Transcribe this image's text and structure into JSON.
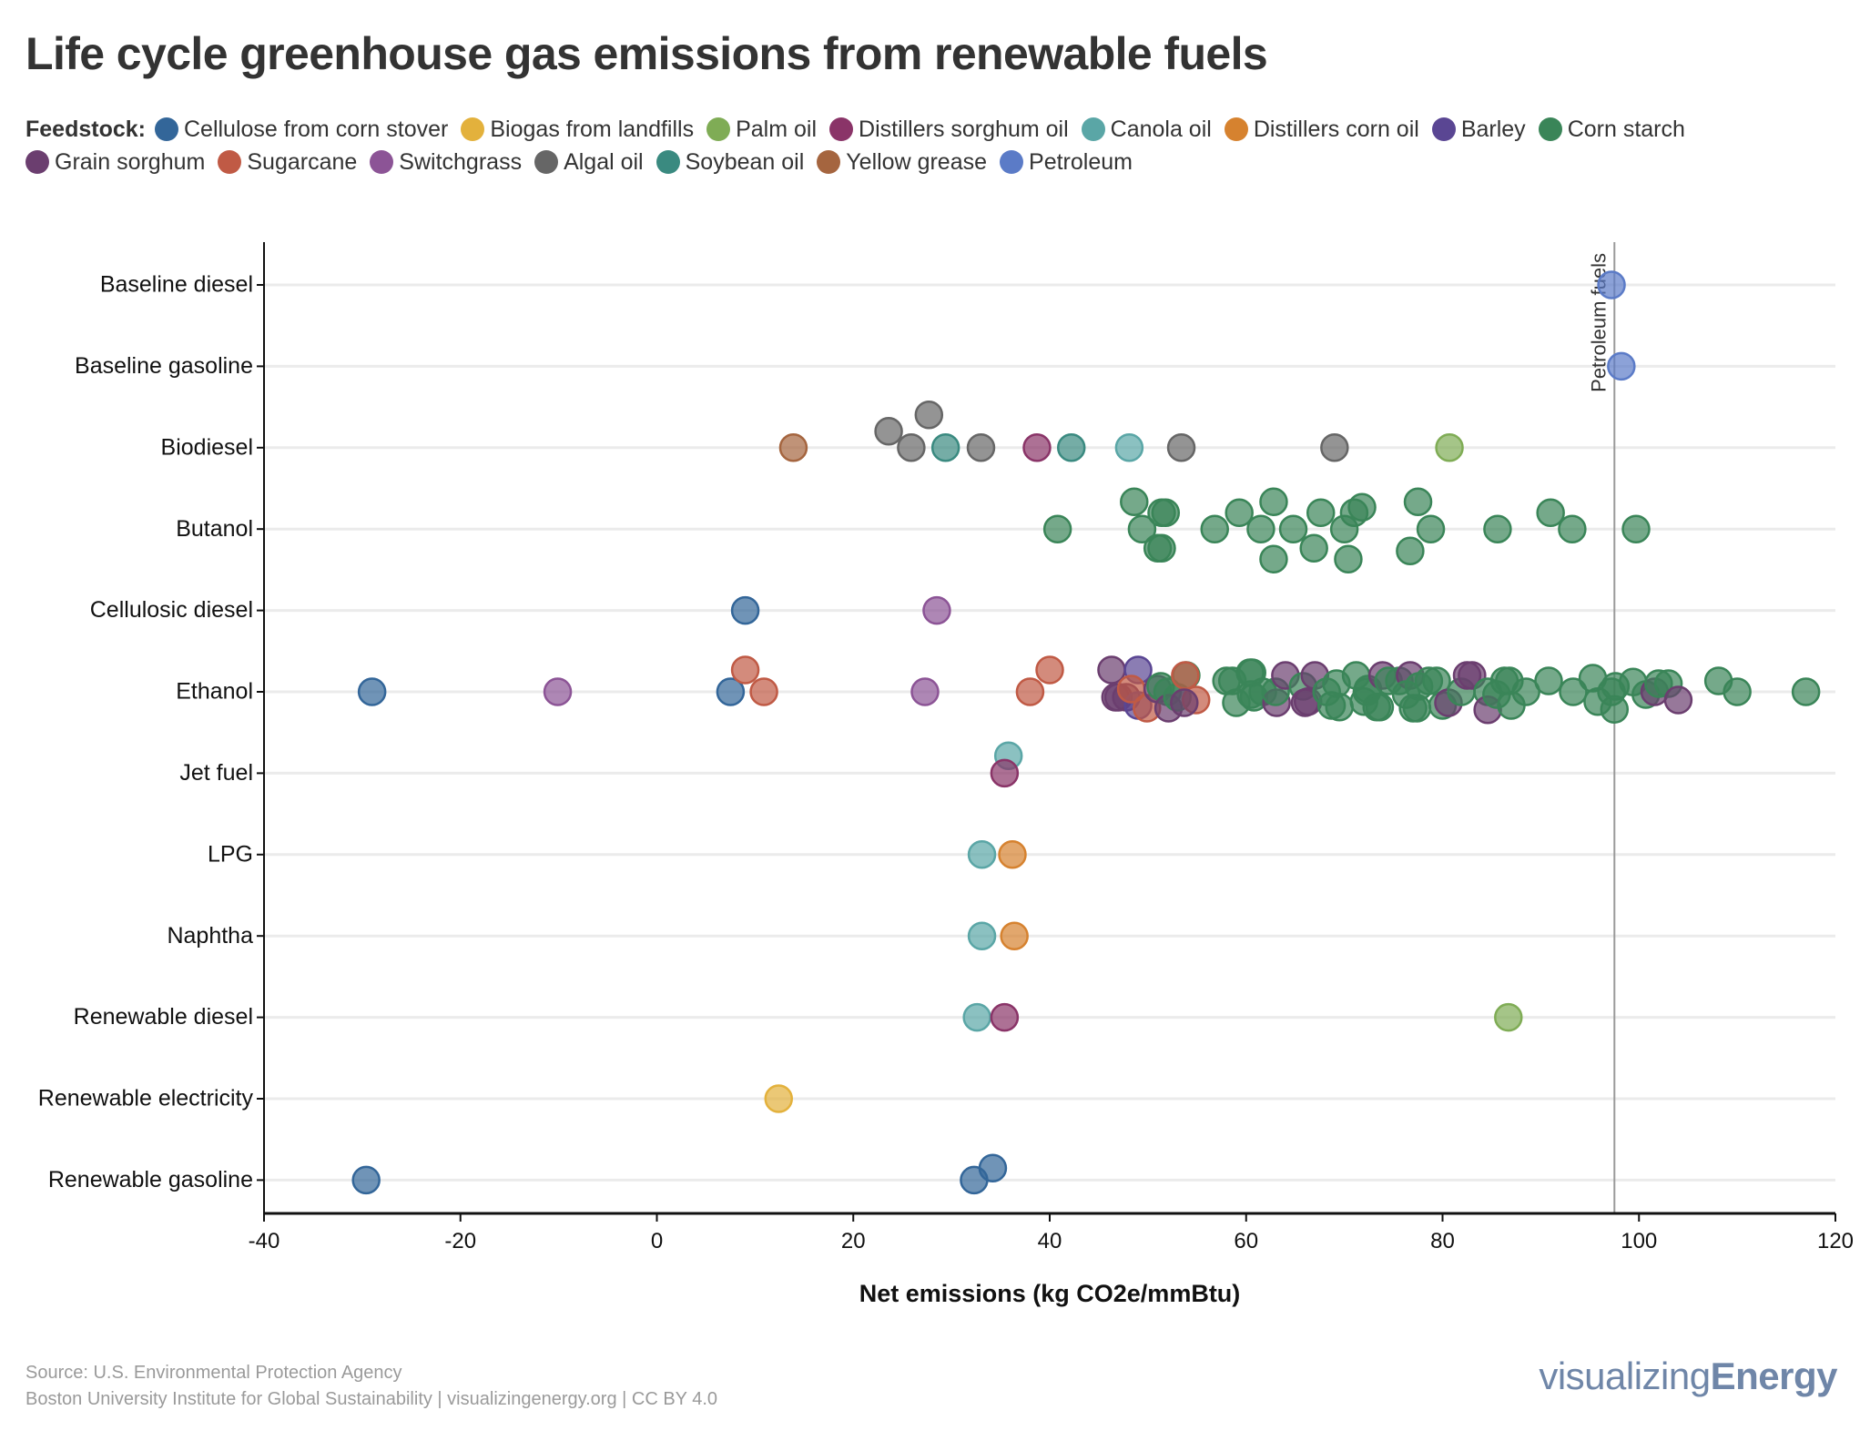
{
  "header": {
    "title": "Life cycle greenhouse gas emissions from renewable fuels"
  },
  "legend": {
    "label": "Feedstock:",
    "rows": [
      [
        {
          "name": "Cellulose from corn stover",
          "color": "#336699"
        },
        {
          "name": "Biogas from landfills",
          "color": "#e3b13c"
        },
        {
          "name": "Palm oil",
          "color": "#7fac55"
        },
        {
          "name": "Distillers sorghum oil",
          "color": "#8a3468"
        },
        {
          "name": "Canola oil",
          "color": "#5aa6a6"
        },
        {
          "name": "Distillers corn oil",
          "color": "#d6822f"
        },
        {
          "name": "Barley",
          "color": "#5a4693"
        },
        {
          "name": "Corn starch",
          "color": "#3a8558"
        }
      ],
      [
        {
          "name": "Grain sorghum",
          "color": "#6b3e6f"
        },
        {
          "name": "Sugarcane",
          "color": "#c05a45"
        },
        {
          "name": "Switchgrass",
          "color": "#8c5496"
        },
        {
          "name": "Algal oil",
          "color": "#666666"
        },
        {
          "name": "Soybean oil",
          "color": "#3a8a80"
        },
        {
          "name": "Yellow grease",
          "color": "#a5653f"
        },
        {
          "name": "Petroleum",
          "color": "#5b7bc7"
        }
      ]
    ]
  },
  "chart_data": {
    "type": "scatter",
    "subtype": "beeswarm",
    "title": "Life cycle greenhouse gas emissions from renewable fuels",
    "xlabel": "Net emissions (kg CO2e/mmBtu)",
    "ylabel": "",
    "xlim": [
      -40,
      120
    ],
    "xticks": [
      -40,
      -20,
      0,
      20,
      40,
      60,
      80,
      100,
      120
    ],
    "xtick_labels": [
      "-40",
      "-20",
      "0",
      "20",
      "40",
      "60",
      "80",
      "100",
      "120"
    ],
    "categories": [
      "Baseline diesel",
      "Baseline gasoline",
      "Biodiesel",
      "Butanol",
      "Cellulosic diesel",
      "Ethanol",
      "Jet fuel",
      "LPG",
      "Naphtha",
      "Renewable diesel",
      "Renewable electricity",
      "Renewable gasoline"
    ],
    "grid": "horizontal",
    "legend_position": "top",
    "reference_line": {
      "x": 97.5,
      "label": "Petroleum fuels"
    },
    "points": [
      {
        "fuel": "Baseline diesel",
        "feedstock": "Petroleum",
        "x": 97.2,
        "o": 0
      },
      {
        "fuel": "Baseline gasoline",
        "feedstock": "Petroleum",
        "x": 98.2,
        "o": 0
      },
      {
        "fuel": "Biodiesel",
        "feedstock": "Yellow grease",
        "x": 13.9,
        "o": 0
      },
      {
        "fuel": "Biodiesel",
        "feedstock": "Algal oil",
        "x": 23.6,
        "o": -0.3
      },
      {
        "fuel": "Biodiesel",
        "feedstock": "Algal oil",
        "x": 25.9,
        "o": 0
      },
      {
        "fuel": "Biodiesel",
        "feedstock": "Algal oil",
        "x": 27.7,
        "o": -0.6
      },
      {
        "fuel": "Biodiesel",
        "feedstock": "Soybean oil",
        "x": 29.4,
        "o": 0
      },
      {
        "fuel": "Biodiesel",
        "feedstock": "Algal oil",
        "x": 33.0,
        "o": 0
      },
      {
        "fuel": "Biodiesel",
        "feedstock": "Distillers sorghum oil",
        "x": 38.7,
        "o": 0
      },
      {
        "fuel": "Biodiesel",
        "feedstock": "Soybean oil",
        "x": 42.2,
        "o": 0
      },
      {
        "fuel": "Biodiesel",
        "feedstock": "Canola oil",
        "x": 48.1,
        "o": 0
      },
      {
        "fuel": "Biodiesel",
        "feedstock": "Algal oil",
        "x": 53.4,
        "o": 0
      },
      {
        "fuel": "Biodiesel",
        "feedstock": "Algal oil",
        "x": 69.0,
        "o": 0
      },
      {
        "fuel": "Biodiesel",
        "feedstock": "Palm oil",
        "x": 80.7,
        "o": 0
      },
      {
        "fuel": "Butanol",
        "feedstock": "Corn starch",
        "x": 40.8,
        "o": 0
      },
      {
        "fuel": "Butanol",
        "feedstock": "Corn starch",
        "x": 48.6,
        "o": -0.5
      },
      {
        "fuel": "Butanol",
        "feedstock": "Corn starch",
        "x": 49.4,
        "o": 0
      },
      {
        "fuel": "Butanol",
        "feedstock": "Corn starch",
        "x": 51.4,
        "o": -0.3
      },
      {
        "fuel": "Butanol",
        "feedstock": "Corn starch",
        "x": 51.8,
        "o": -0.3
      },
      {
        "fuel": "Butanol",
        "feedstock": "Corn starch",
        "x": 51.0,
        "o": 0.35
      },
      {
        "fuel": "Butanol",
        "feedstock": "Corn starch",
        "x": 51.4,
        "o": 0.35
      },
      {
        "fuel": "Butanol",
        "feedstock": "Corn starch",
        "x": 56.8,
        "o": 0
      },
      {
        "fuel": "Butanol",
        "feedstock": "Corn starch",
        "x": 59.3,
        "o": -0.3
      },
      {
        "fuel": "Butanol",
        "feedstock": "Corn starch",
        "x": 61.5,
        "o": 0
      },
      {
        "fuel": "Butanol",
        "feedstock": "Corn starch",
        "x": 62.8,
        "o": -0.5
      },
      {
        "fuel": "Butanol",
        "feedstock": "Corn starch",
        "x": 62.8,
        "o": 0.55
      },
      {
        "fuel": "Butanol",
        "feedstock": "Corn starch",
        "x": 64.8,
        "o": 0
      },
      {
        "fuel": "Butanol",
        "feedstock": "Corn starch",
        "x": 66.9,
        "o": 0.35
      },
      {
        "fuel": "Butanol",
        "feedstock": "Corn starch",
        "x": 67.6,
        "o": -0.3
      },
      {
        "fuel": "Butanol",
        "feedstock": "Corn starch",
        "x": 70.0,
        "o": 0
      },
      {
        "fuel": "Butanol",
        "feedstock": "Corn starch",
        "x": 70.4,
        "o": 0.55
      },
      {
        "fuel": "Butanol",
        "feedstock": "Corn starch",
        "x": 71.0,
        "o": -0.3
      },
      {
        "fuel": "Butanol",
        "feedstock": "Corn starch",
        "x": 71.8,
        "o": -0.4
      },
      {
        "fuel": "Butanol",
        "feedstock": "Corn starch",
        "x": 76.7,
        "o": 0.4
      },
      {
        "fuel": "Butanol",
        "feedstock": "Corn starch",
        "x": 77.5,
        "o": -0.5
      },
      {
        "fuel": "Butanol",
        "feedstock": "Corn starch",
        "x": 78.8,
        "o": 0
      },
      {
        "fuel": "Butanol",
        "feedstock": "Corn starch",
        "x": 85.6,
        "o": 0
      },
      {
        "fuel": "Butanol",
        "feedstock": "Corn starch",
        "x": 91.0,
        "o": -0.3
      },
      {
        "fuel": "Butanol",
        "feedstock": "Corn starch",
        "x": 93.2,
        "o": 0
      },
      {
        "fuel": "Butanol",
        "feedstock": "Corn starch",
        "x": 99.7,
        "o": 0
      },
      {
        "fuel": "Cellulosic diesel",
        "feedstock": "Cellulose from corn stover",
        "x": 9.0,
        "o": 0
      },
      {
        "fuel": "Cellulosic diesel",
        "feedstock": "Switchgrass",
        "x": 28.5,
        "o": 0
      },
      {
        "fuel": "Ethanol",
        "feedstock": "Cellulose from corn stover",
        "x": -29.0,
        "o": 0
      },
      {
        "fuel": "Ethanol",
        "feedstock": "Switchgrass",
        "x": -10.1,
        "o": 0
      },
      {
        "fuel": "Ethanol",
        "feedstock": "Cellulose from corn stover",
        "x": 7.5,
        "o": 0
      },
      {
        "fuel": "Ethanol",
        "feedstock": "Sugarcane",
        "x": 9.0,
        "o": -0.4
      },
      {
        "fuel": "Ethanol",
        "feedstock": "Sugarcane",
        "x": 10.9,
        "o": 0
      },
      {
        "fuel": "Ethanol",
        "feedstock": "Switchgrass",
        "x": 27.3,
        "o": 0
      },
      {
        "fuel": "Ethanol",
        "feedstock": "Sugarcane",
        "x": 38.0,
        "o": 0
      },
      {
        "fuel": "Ethanol",
        "feedstock": "Sugarcane",
        "x": 40.0,
        "o": -0.4
      },
      {
        "fuel": "Ethanol",
        "feedstock": "Grain sorghum",
        "x": 46.3,
        "o": -0.4
      },
      {
        "fuel": "Ethanol",
        "feedstock": "Grain sorghum",
        "x": 46.7,
        "o": 0.1
      },
      {
        "fuel": "Ethanol",
        "feedstock": "Grain sorghum",
        "x": 47.0,
        "o": 0.1
      },
      {
        "fuel": "Ethanol",
        "feedstock": "Grain sorghum",
        "x": 47.8,
        "o": 0.1
      },
      {
        "fuel": "Ethanol",
        "feedstock": "Barley",
        "x": 49.0,
        "o": -0.4
      },
      {
        "fuel": "Ethanol",
        "feedstock": "Barley",
        "x": 49.0,
        "o": 0.25
      },
      {
        "fuel": "Ethanol",
        "feedstock": "Sugarcane",
        "x": 48.3,
        "o": -0.05
      },
      {
        "fuel": "Ethanol",
        "feedstock": "Sugarcane",
        "x": 49.9,
        "o": 0.3
      },
      {
        "fuel": "Ethanol",
        "feedstock": "Grain sorghum",
        "x": 51.0,
        "o": -0.05
      },
      {
        "fuel": "Ethanol",
        "feedstock": "Corn starch",
        "x": 51.3,
        "o": -0.1
      },
      {
        "fuel": "Ethanol",
        "feedstock": "Corn starch",
        "x": 52.0,
        "o": 0.0
      },
      {
        "fuel": "Ethanol",
        "feedstock": "Grain sorghum",
        "x": 52.1,
        "o": 0.3
      },
      {
        "fuel": "Ethanol",
        "feedstock": "Corn starch",
        "x": 53.0,
        "o": 0.1
      },
      {
        "fuel": "Ethanol",
        "feedstock": "Corn starch",
        "x": 53.9,
        "o": -0.3
      },
      {
        "fuel": "Ethanol",
        "feedstock": "Sugarcane",
        "x": 53.8,
        "o": -0.3
      },
      {
        "fuel": "Ethanol",
        "feedstock": "Sugarcane",
        "x": 54.9,
        "o": 0.15
      },
      {
        "fuel": "Ethanol",
        "feedstock": "Grain sorghum",
        "x": 53.7,
        "o": 0.2
      },
      {
        "fuel": "Ethanol",
        "feedstock": "Corn starch",
        "x": 58.0,
        "o": -0.2
      },
      {
        "fuel": "Ethanol",
        "feedstock": "Corn starch",
        "x": 58.6,
        "o": -0.2
      },
      {
        "fuel": "Ethanol",
        "feedstock": "Corn starch",
        "x": 59.0,
        "o": 0.2
      },
      {
        "fuel": "Ethanol",
        "feedstock": "Corn starch",
        "x": 60.4,
        "o": -0.35
      },
      {
        "fuel": "Ethanol",
        "feedstock": "Corn starch",
        "x": 60.6,
        "o": -0.35
      },
      {
        "fuel": "Ethanol",
        "feedstock": "Corn starch",
        "x": 60.5,
        "o": 0.05
      },
      {
        "fuel": "Ethanol",
        "feedstock": "Corn starch",
        "x": 60.8,
        "o": 0.1
      },
      {
        "fuel": "Ethanol",
        "feedstock": "Corn starch",
        "x": 61.7,
        "o": 0.0
      },
      {
        "fuel": "Ethanol",
        "feedstock": "Grain sorghum",
        "x": 63.1,
        "o": 0.2
      },
      {
        "fuel": "Ethanol",
        "feedstock": "Corn starch",
        "x": 63.0,
        "o": 0.0
      },
      {
        "fuel": "Ethanol",
        "feedstock": "Grain sorghum",
        "x": 64.0,
        "o": -0.3
      },
      {
        "fuel": "Ethanol",
        "feedstock": "Corn starch",
        "x": 65.8,
        "o": -0.1
      },
      {
        "fuel": "Ethanol",
        "feedstock": "Grain sorghum",
        "x": 66.0,
        "o": 0.2
      },
      {
        "fuel": "Ethanol",
        "feedstock": "Grain sorghum",
        "x": 66.3,
        "o": 0.18
      },
      {
        "fuel": "Ethanol",
        "feedstock": "Grain sorghum",
        "x": 67.0,
        "o": -0.3
      },
      {
        "fuel": "Ethanol",
        "feedstock": "Corn starch",
        "x": 68.2,
        "o": 0.0
      },
      {
        "fuel": "Ethanol",
        "feedstock": "Corn starch",
        "x": 68.7,
        "o": 0.25
      },
      {
        "fuel": "Ethanol",
        "feedstock": "Corn starch",
        "x": 69.2,
        "o": -0.15
      },
      {
        "fuel": "Ethanol",
        "feedstock": "Corn starch",
        "x": 69.5,
        "o": 0.28
      },
      {
        "fuel": "Ethanol",
        "feedstock": "Corn starch",
        "x": 71.2,
        "o": -0.3
      },
      {
        "fuel": "Ethanol",
        "feedstock": "Corn starch",
        "x": 72.0,
        "o": 0.18
      },
      {
        "fuel": "Ethanol",
        "feedstock": "Corn starch",
        "x": 72.3,
        "o": 0.0
      },
      {
        "fuel": "Ethanol",
        "feedstock": "Corn starch",
        "x": 72.4,
        "o": -0.05
      },
      {
        "fuel": "Ethanol",
        "feedstock": "Corn starch",
        "x": 73.3,
        "o": 0.28
      },
      {
        "fuel": "Ethanol",
        "feedstock": "Corn starch",
        "x": 73.6,
        "o": 0.28
      },
      {
        "fuel": "Ethanol",
        "feedstock": "Grain sorghum",
        "x": 73.9,
        "o": -0.3
      },
      {
        "fuel": "Ethanol",
        "feedstock": "Corn starch",
        "x": 74.5,
        "o": -0.2
      },
      {
        "fuel": "Ethanol",
        "feedstock": "Corn starch",
        "x": 75.6,
        "o": -0.2
      },
      {
        "fuel": "Ethanol",
        "feedstock": "Grain sorghum",
        "x": 76.7,
        "o": -0.3
      },
      {
        "fuel": "Ethanol",
        "feedstock": "Corn starch",
        "x": 76.3,
        "o": 0.05
      },
      {
        "fuel": "Ethanol",
        "feedstock": "Corn starch",
        "x": 77.0,
        "o": 0.3
      },
      {
        "fuel": "Ethanol",
        "feedstock": "Corn starch",
        "x": 77.4,
        "o": 0.3
      },
      {
        "fuel": "Ethanol",
        "feedstock": "Corn starch",
        "x": 77.6,
        "o": -0.1
      },
      {
        "fuel": "Ethanol",
        "feedstock": "Corn starch",
        "x": 78.6,
        "o": -0.2
      },
      {
        "fuel": "Ethanol",
        "feedstock": "Corn starch",
        "x": 79.4,
        "o": -0.2
      },
      {
        "fuel": "Ethanol",
        "feedstock": "Corn starch",
        "x": 80.0,
        "o": 0.25
      },
      {
        "fuel": "Ethanol",
        "feedstock": "Grain sorghum",
        "x": 80.6,
        "o": 0.2
      },
      {
        "fuel": "Ethanol",
        "feedstock": "Corn starch",
        "x": 81.9,
        "o": 0.0
      },
      {
        "fuel": "Ethanol",
        "feedstock": "Grain sorghum",
        "x": 82.5,
        "o": -0.3
      },
      {
        "fuel": "Ethanol",
        "feedstock": "Grain sorghum",
        "x": 83.0,
        "o": -0.3
      },
      {
        "fuel": "Ethanol",
        "feedstock": "Corn starch",
        "x": 84.6,
        "o": 0.0
      },
      {
        "fuel": "Ethanol",
        "feedstock": "Grain sorghum",
        "x": 84.6,
        "o": 0.33
      },
      {
        "fuel": "Ethanol",
        "feedstock": "Corn starch",
        "x": 85.5,
        "o": 0.05
      },
      {
        "fuel": "Ethanol",
        "feedstock": "Corn starch",
        "x": 86.3,
        "o": -0.2
      },
      {
        "fuel": "Ethanol",
        "feedstock": "Corn starch",
        "x": 86.8,
        "o": -0.2
      },
      {
        "fuel": "Ethanol",
        "feedstock": "Corn starch",
        "x": 87.0,
        "o": 0.25
      },
      {
        "fuel": "Ethanol",
        "feedstock": "Corn starch",
        "x": 88.5,
        "o": 0.0
      },
      {
        "fuel": "Ethanol",
        "feedstock": "Corn starch",
        "x": 90.8,
        "o": -0.2
      },
      {
        "fuel": "Ethanol",
        "feedstock": "Corn starch",
        "x": 93.3,
        "o": 0.0
      },
      {
        "fuel": "Ethanol",
        "feedstock": "Corn starch",
        "x": 95.3,
        "o": -0.25
      },
      {
        "fuel": "Ethanol",
        "feedstock": "Corn starch",
        "x": 95.8,
        "o": 0.18
      },
      {
        "fuel": "Ethanol",
        "feedstock": "Corn starch",
        "x": 97.6,
        "o": -0.1
      },
      {
        "fuel": "Ethanol",
        "feedstock": "Corn starch",
        "x": 97.2,
        "o": 0.0
      },
      {
        "fuel": "Ethanol",
        "feedstock": "Corn starch",
        "x": 97.5,
        "o": 0.32
      },
      {
        "fuel": "Ethanol",
        "feedstock": "Corn starch",
        "x": 99.4,
        "o": -0.18
      },
      {
        "fuel": "Ethanol",
        "feedstock": "Corn starch",
        "x": 100.7,
        "o": 0.05
      },
      {
        "fuel": "Ethanol",
        "feedstock": "Grain sorghum",
        "x": 101.6,
        "o": 0.0
      },
      {
        "fuel": "Ethanol",
        "feedstock": "Corn starch",
        "x": 102.0,
        "o": -0.15
      },
      {
        "fuel": "Ethanol",
        "feedstock": "Corn starch",
        "x": 103.0,
        "o": -0.15
      },
      {
        "fuel": "Ethanol",
        "feedstock": "Grain sorghum",
        "x": 104.0,
        "o": 0.15
      },
      {
        "fuel": "Ethanol",
        "feedstock": "Corn starch",
        "x": 108.1,
        "o": -0.2
      },
      {
        "fuel": "Ethanol",
        "feedstock": "Corn starch",
        "x": 110.0,
        "o": 0.0
      },
      {
        "fuel": "Ethanol",
        "feedstock": "Corn starch",
        "x": 117.0,
        "o": 0.0
      },
      {
        "fuel": "Jet fuel",
        "feedstock": "Canola oil",
        "x": 35.8,
        "o": -0.32
      },
      {
        "fuel": "Jet fuel",
        "feedstock": "Distillers sorghum oil",
        "x": 35.4,
        "o": 0
      },
      {
        "fuel": "LPG",
        "feedstock": "Canola oil",
        "x": 33.1,
        "o": 0
      },
      {
        "fuel": "LPG",
        "feedstock": "Distillers corn oil",
        "x": 36.2,
        "o": 0
      },
      {
        "fuel": "Naphtha",
        "feedstock": "Canola oil",
        "x": 33.1,
        "o": 0
      },
      {
        "fuel": "Naphtha",
        "feedstock": "Distillers corn oil",
        "x": 36.4,
        "o": 0
      },
      {
        "fuel": "Renewable diesel",
        "feedstock": "Canola oil",
        "x": 32.6,
        "o": 0
      },
      {
        "fuel": "Renewable diesel",
        "feedstock": "Distillers sorghum oil",
        "x": 35.4,
        "o": 0
      },
      {
        "fuel": "Renewable diesel",
        "feedstock": "Palm oil",
        "x": 86.7,
        "o": 0
      },
      {
        "fuel": "Renewable electricity",
        "feedstock": "Biogas from landfills",
        "x": 12.4,
        "o": 0
      },
      {
        "fuel": "Renewable gasoline",
        "feedstock": "Cellulose from corn stover",
        "x": -29.6,
        "o": 0
      },
      {
        "fuel": "Renewable gasoline",
        "feedstock": "Cellulose from corn stover",
        "x": 32.3,
        "o": 0
      },
      {
        "fuel": "Renewable gasoline",
        "feedstock": "Cellulose from corn stover",
        "x": 34.2,
        "o": -0.22
      }
    ]
  },
  "footer": {
    "source": "Source: U.S. Environmental Protection Agency",
    "credit": "Boston University Institute for Global Sustainability | visualizingenergy.org | CC BY 4.0",
    "brand_light": "visualizing",
    "brand_bold": "Energy"
  }
}
